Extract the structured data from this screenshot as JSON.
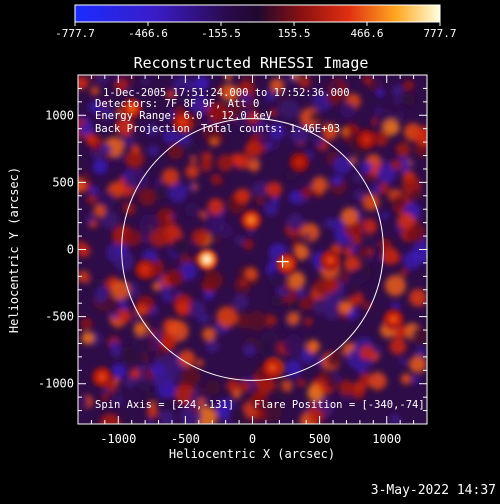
{
  "colorbar": {
    "ticks": [
      "-777.7",
      "-466.6",
      "-155.5",
      "155.5",
      "466.6",
      "777.7"
    ]
  },
  "chart_data": {
    "type": "heatmap",
    "title": "Reconstructed RHESSI Image",
    "xlabel": "Heliocentric X (arcsec)",
    "ylabel": "Heliocentric Y (arcsec)",
    "xlim": [
      -1300,
      1300
    ],
    "ylim": [
      -1300,
      1300
    ],
    "x_ticks": [
      -1000,
      -500,
      0,
      500,
      1000
    ],
    "y_ticks": [
      -1000,
      -500,
      0,
      500,
      1000
    ],
    "x_tick_labels": [
      "-1000",
      "-500",
      "0",
      "500",
      "1000"
    ],
    "y_tick_labels": [
      "-1000",
      "-500",
      "0",
      "500",
      "1000"
    ],
    "colorbar_range": [
      -777.7,
      777.7
    ],
    "solar_limb_radius": 975,
    "flare_position": [
      -340,
      -74
    ],
    "spin_axis": [
      224,
      -131
    ],
    "marker_position": [
      224,
      -90
    ],
    "bright_sources": [
      {
        "x": -340,
        "y": -74,
        "value": 777.7
      },
      {
        "x": -10,
        "y": 220,
        "value": 520
      },
      {
        "x": 255,
        "y": -105,
        "value": 470
      },
      {
        "x": -900,
        "y": 1050,
        "value": 450
      },
      {
        "x": 580,
        "y": -80,
        "value": 400
      },
      {
        "x": -520,
        "y": 950,
        "value": 380
      },
      {
        "x": 1050,
        "y": -520,
        "value": 420
      },
      {
        "x": -1120,
        "y": -950,
        "value": 400
      },
      {
        "x": 150,
        "y": -880,
        "value": 420
      },
      {
        "x": -800,
        "y": -150,
        "value": 360
      },
      {
        "x": 850,
        "y": 820,
        "value": 330
      },
      {
        "x": 350,
        "y": 650,
        "value": 300
      }
    ],
    "annotations": [
      "1-Dec-2005 17:51:24.000 to 17:52:36.000",
      "Detectors: 7F 8F 9F, Att 0",
      "Energy Range: 6.0 - 12.0 keV",
      "Back Projection",
      "Total counts: 1.46E+03",
      "Spin Axis = [224,-131]",
      "Flare Position = [-340,-74]"
    ],
    "timestamp": "3-May-2022 14:37"
  }
}
